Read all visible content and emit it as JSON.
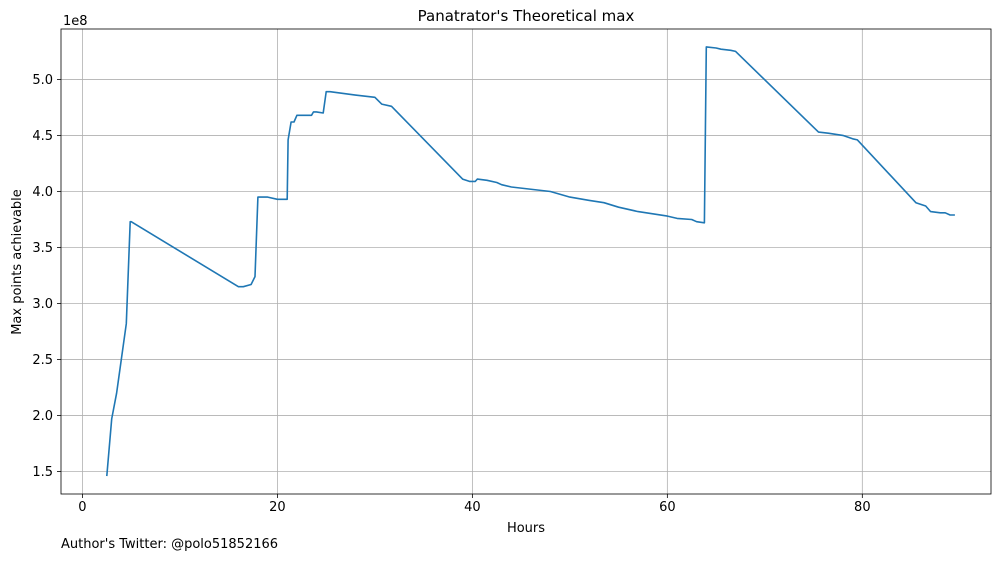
{
  "chart_data": {
    "type": "line",
    "title": "Panatrator's Theoretical max",
    "xlabel": "Hours",
    "ylabel": "Max points achievable",
    "y_offset_text": "1e8",
    "xlim": [
      -2.2,
      93.2
    ],
    "ylim": [
      130000000.0,
      545000000.0
    ],
    "xticks": [
      0,
      20,
      40,
      60,
      80
    ],
    "xtick_labels": [
      "0",
      "20",
      "40",
      "60",
      "80"
    ],
    "yticks": [
      150000000.0,
      200000000.0,
      250000000.0,
      300000000.0,
      350000000.0,
      400000000.0,
      450000000.0,
      500000000.0
    ],
    "ytick_labels": [
      "1.5",
      "2.0",
      "2.5",
      "3.0",
      "3.5",
      "4.0",
      "4.5",
      "5.0"
    ],
    "grid": true,
    "line_color": "#1f77b4",
    "series": [
      {
        "x": [
          2.5,
          3.0,
          3.5,
          4.5,
          4.9,
          5.0,
          16.0,
          16.5,
          17.3,
          17.7,
          18.0,
          19.0,
          20.0,
          21.0,
          21.1,
          21.4,
          21.7,
          22.0,
          22.3,
          23.5,
          23.7,
          24.0,
          24.7,
          25.0,
          25.4,
          28.0,
          30.0,
          30.7,
          31.7,
          39.0,
          39.7,
          40.3,
          40.5,
          41.5,
          42.5,
          43.0,
          44.0,
          48.0,
          50.0,
          52.0,
          53.5,
          55.0,
          57.0,
          60.0,
          61.0,
          62.5,
          63.0,
          63.8,
          64.0,
          65.0,
          65.5,
          66.5,
          67.0,
          75.5,
          76.5,
          78.0,
          79.0,
          79.5,
          85.5,
          86.5,
          87.0,
          88.0,
          88.5,
          89.0,
          89.5
        ],
        "y": [
          146000000.0,
          197000000.0,
          220000000.0,
          282000000.0,
          373000000.0,
          373000000.0,
          315000000.0,
          315000000.0,
          317000000.0,
          324000000.0,
          395000000.0,
          395000000.0,
          393000000.0,
          393000000.0,
          446000000.0,
          462000000.0,
          462000000.0,
          468000000.0,
          468000000.0,
          468000000.0,
          471000000.0,
          471000000.0,
          470000000.0,
          489000000.0,
          489000000.0,
          486000000.0,
          484000000.0,
          478000000.0,
          476000000.0,
          411000000.0,
          409000000.0,
          409000000.0,
          411000000.0,
          410000000.0,
          408000000.0,
          406000000.0,
          404000000.0,
          400000000.0,
          395000000.0,
          392000000.0,
          390000000.0,
          386000000.0,
          382000000.0,
          378000000.0,
          376000000.0,
          375000000.0,
          373000000.0,
          372000000.0,
          529000000.0,
          528000000.0,
          527000000.0,
          526000000.0,
          525000000.0,
          453000000.0,
          452000000.0,
          450000000.0,
          447000000.0,
          446000000.0,
          390000000.0,
          387000000.0,
          382000000.0,
          381000000.0,
          381000000.0,
          379000000.0,
          379000000.0
        ]
      }
    ]
  },
  "footer": {
    "credit": "Author's Twitter: @polo51852166"
  }
}
